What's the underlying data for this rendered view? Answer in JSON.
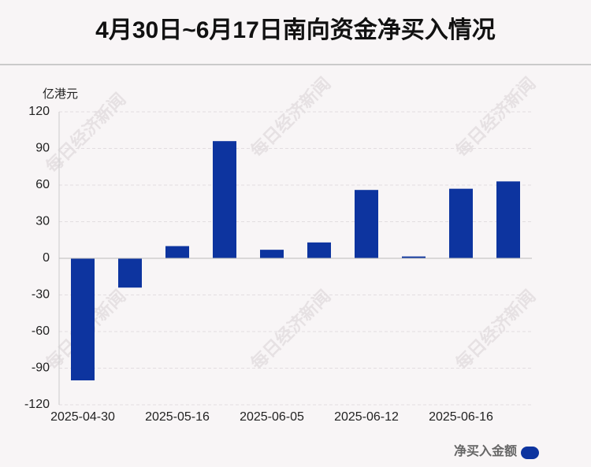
{
  "chart_data": {
    "type": "bar",
    "title": "4月30日~6月17日南向资金净买入情况",
    "y_label": "亿港元",
    "watermark": "每日经济新闻",
    "categories": [
      "2025-04-30",
      null,
      "2025-05-16",
      null,
      "2025-06-05",
      null,
      "2025-06-12",
      null,
      "2025-06-16",
      null
    ],
    "series": [
      {
        "name": "净买入金额",
        "color": "#0d349f",
        "values": [
          -100,
          -24,
          10,
          96,
          7,
          13,
          56,
          1.5,
          57,
          63
        ]
      }
    ],
    "ylim": [
      -120,
      120
    ],
    "yticks": [
      -120,
      -90,
      -60,
      -30,
      0,
      30,
      60,
      90,
      120
    ],
    "grid": true
  }
}
